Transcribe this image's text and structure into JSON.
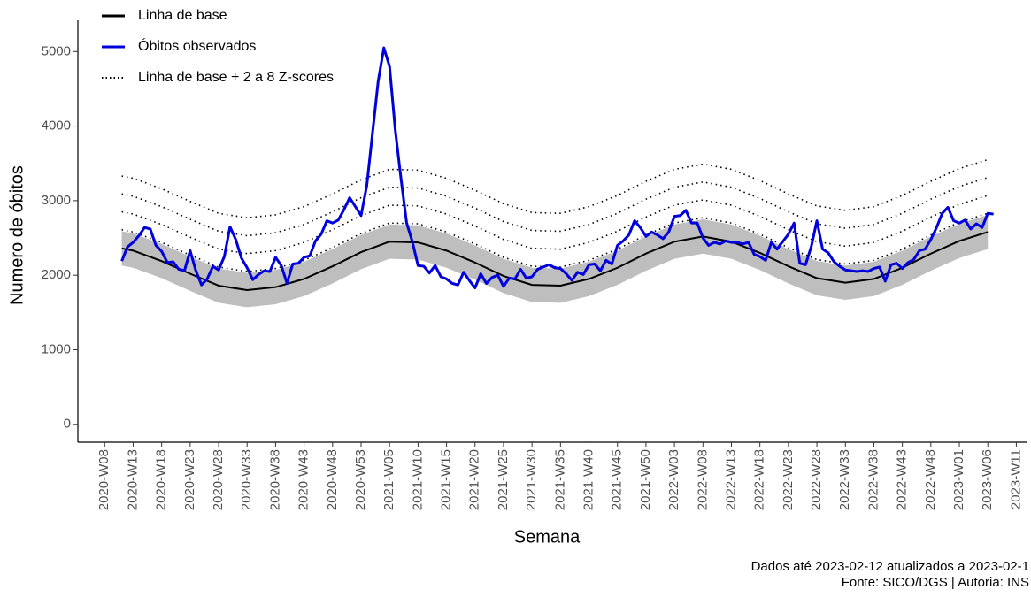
{
  "chart_data": {
    "type": "line",
    "x_label": "Semana",
    "y_label": "Numero de óbitos",
    "captions": [
      "Dados até 2023-02-12 atualizados a 2023-02-1",
      "Fonte: SICO/DGS | Autoria: INS"
    ],
    "legend_position": "top-left",
    "xlim": [
      -4.7,
      161.8
    ],
    "ylim": [
      -240,
      5300
    ],
    "yticks": [
      0,
      1000,
      2000,
      3000,
      4000,
      5000
    ],
    "xticks": [
      {
        "value": 0,
        "label": "2020-W08"
      },
      {
        "value": 5,
        "label": "2020-W13"
      },
      {
        "value": 10,
        "label": "2020-W18"
      },
      {
        "value": 15,
        "label": "2020-W23"
      },
      {
        "value": 20,
        "label": "2020-W28"
      },
      {
        "value": 25,
        "label": "2020-W33"
      },
      {
        "value": 30,
        "label": "2020-W38"
      },
      {
        "value": 35,
        "label": "2020-W43"
      },
      {
        "value": 40,
        "label": "2020-W48"
      },
      {
        "value": 45,
        "label": "2020-W53"
      },
      {
        "value": 50,
        "label": "2021-W05"
      },
      {
        "value": 55,
        "label": "2021-W10"
      },
      {
        "value": 60,
        "label": "2021-W15"
      },
      {
        "value": 65,
        "label": "2021-W20"
      },
      {
        "value": 70,
        "label": "2021-W25"
      },
      {
        "value": 75,
        "label": "2021-W30"
      },
      {
        "value": 80,
        "label": "2021-W35"
      },
      {
        "value": 85,
        "label": "2021-W40"
      },
      {
        "value": 90,
        "label": "2021-W45"
      },
      {
        "value": 95,
        "label": "2021-W50"
      },
      {
        "value": 100,
        "label": "2022-W03"
      },
      {
        "value": 105,
        "label": "2022-W08"
      },
      {
        "value": 110,
        "label": "2022-W13"
      },
      {
        "value": 115,
        "label": "2022-W18"
      },
      {
        "value": 120,
        "label": "2022-W23"
      },
      {
        "value": 125,
        "label": "2022-W28"
      },
      {
        "value": 130,
        "label": "2022-W33"
      },
      {
        "value": 135,
        "label": "2022-W38"
      },
      {
        "value": 140,
        "label": "2022-W43"
      },
      {
        "value": 145,
        "label": "2022-W48"
      },
      {
        "value": 150,
        "label": "2023-W01"
      },
      {
        "value": 155,
        "label": "2023-W06"
      },
      {
        "value": 160,
        "label": "2023-W11"
      }
    ],
    "band": {
      "color": "#bebebe",
      "x": [
        3,
        5,
        10,
        15,
        20,
        25,
        30,
        35,
        40,
        45,
        50,
        55,
        60,
        65,
        70,
        75,
        80,
        85,
        90,
        95,
        100,
        105,
        110,
        115,
        120,
        125,
        130,
        135,
        140,
        145,
        150,
        155
      ],
      "lower": [
        2130,
        2100,
        1960,
        1790,
        1630,
        1570,
        1610,
        1720,
        1890,
        2080,
        2220,
        2210,
        2100,
        1940,
        1760,
        1640,
        1630,
        1720,
        1870,
        2060,
        2220,
        2290,
        2220,
        2070,
        1890,
        1730,
        1670,
        1720,
        1870,
        2060,
        2230,
        2350
      ],
      "upper": [
        2590,
        2560,
        2420,
        2250,
        2090,
        2030,
        2070,
        2180,
        2350,
        2540,
        2680,
        2670,
        2560,
        2400,
        2220,
        2100,
        2090,
        2180,
        2330,
        2520,
        2680,
        2750,
        2680,
        2530,
        2350,
        2190,
        2130,
        2180,
        2330,
        2520,
        2690,
        2810
      ]
    },
    "zscore_lines": {
      "name": "Linha de base + 2 a 8 Z-scores",
      "color": "#000000",
      "x": [
        3,
        5,
        10,
        15,
        20,
        25,
        30,
        35,
        40,
        45,
        50,
        55,
        60,
        65,
        70,
        75,
        80,
        85,
        90,
        95,
        100,
        105,
        110,
        115,
        120,
        125,
        130,
        135,
        140,
        145,
        150,
        155
      ],
      "lines": [
        [
          2610,
          2580,
          2440,
          2270,
          2110,
          2050,
          2090,
          2200,
          2370,
          2560,
          2700,
          2690,
          2580,
          2420,
          2240,
          2120,
          2110,
          2200,
          2350,
          2540,
          2700,
          2770,
          2700,
          2550,
          2370,
          2210,
          2150,
          2200,
          2350,
          2540,
          2710,
          2830
        ],
        [
          2850,
          2820,
          2680,
          2510,
          2350,
          2290,
          2330,
          2440,
          2610,
          2800,
          2940,
          2930,
          2820,
          2660,
          2480,
          2360,
          2350,
          2440,
          2590,
          2780,
          2940,
          3010,
          2940,
          2790,
          2610,
          2450,
          2390,
          2440,
          2590,
          2780,
          2950,
          3070
        ],
        [
          3090,
          3060,
          2920,
          2750,
          2590,
          2530,
          2570,
          2680,
          2850,
          3040,
          3180,
          3170,
          3060,
          2900,
          2720,
          2600,
          2590,
          2680,
          2830,
          3020,
          3180,
          3250,
          3180,
          3030,
          2850,
          2690,
          2630,
          2680,
          2830,
          3020,
          3190,
          3310
        ],
        [
          3330,
          3300,
          3160,
          2990,
          2830,
          2770,
          2810,
          2920,
          3090,
          3280,
          3420,
          3410,
          3300,
          3140,
          2960,
          2840,
          2830,
          2920,
          3070,
          3260,
          3420,
          3490,
          3420,
          3270,
          3090,
          2930,
          2870,
          2920,
          3070,
          3260,
          3430,
          3550
        ]
      ]
    },
    "series": [
      {
        "name": "Linha de base",
        "color": "#000000",
        "x": [
          3,
          5,
          10,
          15,
          20,
          25,
          30,
          35,
          40,
          45,
          50,
          55,
          60,
          65,
          70,
          75,
          80,
          85,
          90,
          95,
          100,
          105,
          110,
          115,
          120,
          125,
          130,
          135,
          140,
          145,
          150,
          155
        ],
        "values": [
          2360,
          2330,
          2190,
          2020,
          1860,
          1800,
          1840,
          1950,
          2120,
          2310,
          2450,
          2440,
          2330,
          2170,
          1990,
          1870,
          1860,
          1950,
          2100,
          2290,
          2450,
          2520,
          2450,
          2300,
          2120,
          1960,
          1900,
          1950,
          2100,
          2290,
          2460,
          2580
        ]
      },
      {
        "name": "Óbitos observados",
        "color": "#0000dd",
        "x": [
          3,
          4,
          5,
          6,
          7,
          8,
          9,
          10,
          11,
          12,
          13,
          14,
          15,
          16,
          17,
          18,
          19,
          20,
          21,
          22,
          23,
          24,
          25,
          26,
          27,
          28,
          29,
          30,
          31,
          32,
          33,
          34,
          35,
          36,
          37,
          38,
          39,
          40,
          41,
          42,
          43,
          44,
          45,
          46,
          47,
          48,
          49,
          50,
          51,
          52,
          53,
          54,
          55,
          56,
          57,
          58,
          59,
          60,
          61,
          62,
          63,
          64,
          65,
          66,
          67,
          68,
          69,
          70,
          71,
          72,
          73,
          74,
          75,
          76,
          77,
          78,
          79,
          80,
          81,
          82,
          83,
          84,
          85,
          86,
          87,
          88,
          89,
          90,
          91,
          92,
          93,
          94,
          95,
          96,
          97,
          98,
          99,
          100,
          101,
          102,
          103,
          104,
          105,
          106,
          107,
          108,
          109,
          110,
          111,
          112,
          113,
          114,
          115,
          116,
          117,
          118,
          119,
          120,
          121,
          122,
          123,
          124,
          125,
          126,
          127,
          128,
          129,
          130,
          131,
          132,
          133,
          134,
          135,
          136,
          137,
          138,
          139,
          140,
          141,
          142,
          143,
          144,
          145,
          146,
          147,
          148,
          149,
          150,
          151,
          152,
          153,
          154,
          155,
          156
        ],
        "values": [
          2190,
          2380,
          2440,
          2530,
          2640,
          2620,
          2400,
          2320,
          2170,
          2180,
          2080,
          2060,
          2330,
          2060,
          1870,
          1950,
          2120,
          2070,
          2250,
          2650,
          2480,
          2230,
          2100,
          1940,
          2010,
          2060,
          2050,
          2240,
          2130,
          1890,
          2150,
          2160,
          2240,
          2260,
          2460,
          2550,
          2730,
          2700,
          2740,
          2880,
          3040,
          2920,
          2800,
          3200,
          3900,
          4600,
          5050,
          4800,
          3950,
          3300,
          2700,
          2450,
          2130,
          2120,
          2030,
          2130,
          1980,
          1950,
          1890,
          1870,
          2040,
          1930,
          1830,
          2020,
          1890,
          1970,
          2000,
          1850,
          1960,
          1950,
          2080,
          1960,
          1980,
          2080,
          2110,
          2140,
          2100,
          2090,
          2020,
          1930,
          2040,
          2010,
          2140,
          2150,
          2060,
          2200,
          2150,
          2400,
          2460,
          2540,
          2730,
          2640,
          2520,
          2580,
          2540,
          2490,
          2580,
          2790,
          2800,
          2870,
          2700,
          2700,
          2500,
          2400,
          2440,
          2420,
          2460,
          2440,
          2440,
          2420,
          2440,
          2280,
          2250,
          2200,
          2440,
          2350,
          2450,
          2550,
          2700,
          2160,
          2140,
          2380,
          2730,
          2350,
          2300,
          2180,
          2120,
          2070,
          2060,
          2050,
          2060,
          2050,
          2090,
          2110,
          1920,
          2140,
          2160,
          2090,
          2170,
          2210,
          2330,
          2350,
          2480,
          2640,
          2830,
          2910,
          2730,
          2700,
          2740,
          2620,
          2690,
          2640,
          2830,
          2820
        ]
      }
    ]
  }
}
